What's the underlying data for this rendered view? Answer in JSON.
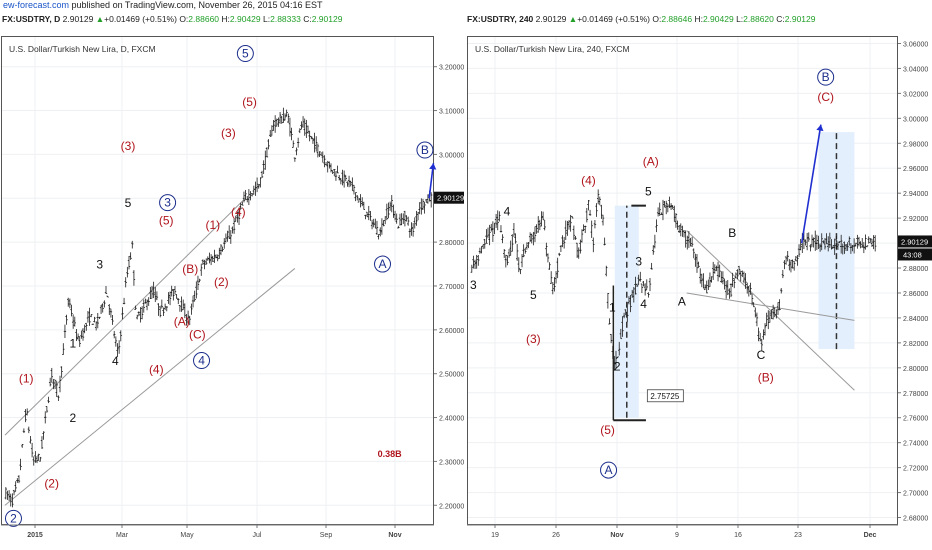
{
  "header": {
    "site": "ew-forecast.com",
    "published": " published on TradingView.com, November 26, 2015 04:16 EST"
  },
  "left_ohlc": {
    "symbol": "FX:USDTRY, D",
    "price": "2.90129",
    "change": "+0.01469 (+0.51%)",
    "o_label": "O:",
    "o": "2.88660",
    "h_label": "H:",
    "h": "2.90429",
    "l_label": "L:",
    "l": "2.88333",
    "c_label": "C:",
    "c": "2.90129"
  },
  "right_ohlc": {
    "symbol": "FX:USDTRY, 240",
    "price": "2.90129",
    "change": "+0.01469 (+0.51%)",
    "o_label": "O:",
    "o": "2.88646",
    "h_label": "H:",
    "h": "2.90429",
    "l_label": "L:",
    "l": "2.88620",
    "c_label": "C:",
    "c": "2.90129"
  },
  "colors": {
    "wave_red": "#b0141c",
    "wave_navy": "#1c2e8c",
    "wave_black": "#111111",
    "projection_fill": "#e3effc",
    "forecast_arrow": "#1f2fd0",
    "channel": "#9a9a9a"
  },
  "chart_data": [
    {
      "type": "candlestick",
      "title": "U.S. Dollar/Turkish New Lira, D, FXCM",
      "x_ticks": [
        "2015",
        "Mar",
        "May",
        "Jul",
        "Sep",
        "Nov"
      ],
      "y_ticks": [
        "2.20000",
        "2.30000",
        "2.40000",
        "2.50000",
        "2.60000",
        "2.70000",
        "2.80000",
        "2.90000",
        "3.00000",
        "3.10000",
        "3.20000"
      ],
      "ylim": [
        2.155,
        3.27
      ],
      "last_price": "2.90129",
      "path": [
        [
          0,
          2.23
        ],
        [
          0.05,
          2.21
        ],
        [
          0.1,
          2.26
        ],
        [
          0.15,
          2.42
        ],
        [
          0.2,
          2.3
        ],
        [
          0.25,
          2.31
        ],
        [
          0.33,
          2.5
        ],
        [
          0.38,
          2.45
        ],
        [
          0.45,
          2.67
        ],
        [
          0.52,
          2.57
        ],
        [
          0.6,
          2.63
        ],
        [
          0.65,
          2.61
        ],
        [
          0.72,
          2.69
        ],
        [
          0.8,
          2.54
        ],
        [
          0.86,
          2.72
        ],
        [
          0.9,
          2.79
        ],
        [
          0.93,
          2.62
        ],
        [
          1.05,
          2.69
        ],
        [
          1.1,
          2.64
        ],
        [
          1.2,
          2.69
        ],
        [
          1.3,
          2.62
        ],
        [
          1.4,
          2.75
        ],
        [
          1.5,
          2.77
        ],
        [
          1.6,
          2.82
        ],
        [
          1.7,
          2.9
        ],
        [
          1.8,
          2.93
        ],
        [
          1.9,
          3.07
        ],
        [
          2.0,
          3.09
        ],
        [
          2.05,
          3.0
        ],
        [
          2.1,
          3.07
        ],
        [
          2.3,
          2.97
        ],
        [
          2.45,
          2.93
        ],
        [
          2.55,
          2.87
        ],
        [
          2.65,
          2.82
        ],
        [
          2.73,
          2.89
        ],
        [
          2.78,
          2.84
        ],
        [
          2.83,
          2.86
        ],
        [
          2.88,
          2.82
        ],
        [
          2.93,
          2.88
        ],
        [
          3.0,
          2.9
        ]
      ],
      "x_range": [
        0,
        3.02
      ],
      "channels": [
        {
          "from": [
            0,
            2.36
          ],
          "to": [
            1.7,
            2.9
          ]
        },
        {
          "from": [
            0,
            2.2
          ],
          "to": [
            2.05,
            2.74
          ]
        }
      ],
      "annotation": {
        "text": "0.38B",
        "x": 2.72,
        "y": 2.31,
        "color": "wave_red"
      },
      "forecast": {
        "from": [
          3.0,
          2.9
        ],
        "to": [
          3.03,
          2.98
        ]
      },
      "labels": [
        {
          "text": "(1)",
          "x": 0.15,
          "y": 2.48,
          "color": "wave_red"
        },
        {
          "text": "(2)",
          "x": 0.33,
          "y": 2.24,
          "color": "wave_red"
        },
        {
          "text": "1",
          "x": 0.48,
          "y": 2.56,
          "color": "wave_black"
        },
        {
          "text": "2",
          "x": 0.48,
          "y": 2.39,
          "color": "wave_black"
        },
        {
          "text": "3",
          "x": 0.67,
          "y": 2.74,
          "color": "wave_black"
        },
        {
          "text": "4",
          "x": 0.78,
          "y": 2.52,
          "color": "wave_black"
        },
        {
          "text": "5",
          "x": 0.87,
          "y": 2.88,
          "color": "wave_black"
        },
        {
          "text": "(3)",
          "x": 0.87,
          "y": 3.01,
          "color": "wave_red"
        },
        {
          "text": "(4)",
          "x": 1.07,
          "y": 2.5,
          "color": "wave_red"
        },
        {
          "text": "(5)",
          "x": 1.14,
          "y": 2.84,
          "color": "wave_red"
        },
        {
          "text": "(A)",
          "x": 1.25,
          "y": 2.61,
          "color": "wave_red"
        },
        {
          "text": "(B)",
          "x": 1.31,
          "y": 2.73,
          "color": "wave_red"
        },
        {
          "text": "(C)",
          "x": 1.36,
          "y": 2.58,
          "color": "wave_red"
        },
        {
          "text": "(1)",
          "x": 1.47,
          "y": 2.83,
          "color": "wave_red"
        },
        {
          "text": "(2)",
          "x": 1.53,
          "y": 2.7,
          "color": "wave_red"
        },
        {
          "text": "(3)",
          "x": 1.58,
          "y": 3.04,
          "color": "wave_red"
        },
        {
          "text": "(4)",
          "x": 1.65,
          "y": 2.86,
          "color": "wave_red"
        },
        {
          "text": "(5)",
          "x": 1.73,
          "y": 3.11,
          "color": "wave_red"
        }
      ],
      "circles": [
        {
          "text": "2",
          "x": 0.06,
          "y": 2.17
        },
        {
          "text": "3",
          "x": 1.15,
          "y": 2.89
        },
        {
          "text": "4",
          "x": 1.39,
          "y": 2.53
        },
        {
          "text": "5",
          "x": 1.7,
          "y": 3.23
        },
        {
          "text": "A",
          "x": 2.67,
          "y": 2.75
        },
        {
          "text": "B",
          "x": 2.97,
          "y": 3.01
        }
      ]
    },
    {
      "type": "candlestick",
      "title": "U.S. Dollar/Turkish New Lira, 240, FXCM",
      "x_ticks": [
        "19",
        "26",
        "Nov",
        "9",
        "16",
        "23",
        "Dec"
      ],
      "y_ticks": [
        "2.68000",
        "2.70000",
        "2.72000",
        "2.74000",
        "2.76000",
        "2.78000",
        "2.80000",
        "2.82000",
        "2.84000",
        "2.86000",
        "2.88000",
        "2.90000",
        "2.92000",
        "2.94000",
        "2.96000",
        "2.98000",
        "3.00000",
        "3.02000",
        "3.04000",
        "3.06000"
      ],
      "ylim": [
        2.674,
        3.066
      ],
      "last_price": "2.90129",
      "countdown": "43:08",
      "projection_label": "2.75725",
      "path": [
        [
          0,
          2.88
        ],
        [
          0.3,
          2.9
        ],
        [
          0.6,
          2.92
        ],
        [
          0.75,
          2.88
        ],
        [
          0.9,
          2.91
        ],
        [
          1.0,
          2.88
        ],
        [
          1.2,
          2.9
        ],
        [
          1.5,
          2.92
        ],
        [
          1.7,
          2.86
        ],
        [
          1.9,
          2.9
        ],
        [
          2.1,
          2.92
        ],
        [
          2.25,
          2.89
        ],
        [
          2.45,
          2.93
        ],
        [
          2.55,
          2.9
        ],
        [
          2.65,
          2.94
        ],
        [
          2.75,
          2.92
        ],
        [
          2.9,
          2.83
        ],
        [
          3.0,
          2.8
        ],
        [
          3.2,
          2.84
        ],
        [
          3.5,
          2.87
        ],
        [
          3.7,
          2.86
        ],
        [
          3.9,
          2.92
        ],
        [
          4.05,
          2.93
        ],
        [
          4.2,
          2.93
        ],
        [
          4.35,
          2.91
        ],
        [
          4.6,
          2.9
        ],
        [
          4.9,
          2.86
        ],
        [
          5.1,
          2.88
        ],
        [
          5.4,
          2.86
        ],
        [
          5.6,
          2.88
        ],
        [
          5.85,
          2.86
        ],
        [
          6.05,
          2.82
        ],
        [
          6.2,
          2.84
        ],
        [
          6.45,
          2.85
        ],
        [
          6.55,
          2.89
        ],
        [
          6.75,
          2.88
        ],
        [
          6.9,
          2.9
        ]
      ],
      "x_range": [
        0,
        8.45
      ],
      "projections": [
        {
          "x0": 3.0,
          "x1": 3.5,
          "y0": 2.76,
          "y1": 2.93
        },
        {
          "x0": 7.25,
          "x1": 8.0,
          "y0": 2.815,
          "y1": 2.989
        }
      ],
      "bracket": {
        "x0": 2.97,
        "x1": 3.65,
        "y_top": 2.93,
        "y_bottom": 2.758
      },
      "channels": [
        {
          "from": [
            4.5,
            2.91
          ],
          "to": [
            8.0,
            2.782
          ]
        },
        {
          "from": [
            4.5,
            2.86
          ],
          "to": [
            8.0,
            2.838
          ]
        }
      ],
      "forecast": {
        "from": [
          6.9,
          2.9
        ],
        "to": [
          7.3,
          2.995
        ]
      },
      "labels": [
        {
          "text": "3",
          "x": 0.05,
          "y": 2.863,
          "color": "wave_black"
        },
        {
          "text": "4",
          "x": 0.75,
          "y": 2.922,
          "color": "wave_black"
        },
        {
          "text": "5",
          "x": 1.3,
          "y": 2.855,
          "color": "wave_black"
        },
        {
          "text": "(3)",
          "x": 1.3,
          "y": 2.82,
          "color": "wave_red"
        },
        {
          "text": "(4)",
          "x": 2.45,
          "y": 2.947,
          "color": "wave_red"
        },
        {
          "text": "(A)",
          "x": 3.75,
          "y": 2.962,
          "color": "wave_red"
        },
        {
          "text": "5",
          "x": 3.7,
          "y": 2.938,
          "color": "wave_black"
        },
        {
          "text": "1",
          "x": 2.95,
          "y": 2.845,
          "color": "wave_black"
        },
        {
          "text": "2",
          "x": 3.05,
          "y": 2.798,
          "color": "wave_black"
        },
        {
          "text": "3",
          "x": 3.5,
          "y": 2.882,
          "color": "wave_black"
        },
        {
          "text": "4",
          "x": 3.6,
          "y": 2.848,
          "color": "wave_black"
        },
        {
          "text": "(5)",
          "x": 2.85,
          "y": 2.747,
          "color": "wave_red"
        },
        {
          "text": "A",
          "x": 4.4,
          "y": 2.85,
          "color": "wave_black"
        },
        {
          "text": "B",
          "x": 5.45,
          "y": 2.905,
          "color": "wave_black"
        },
        {
          "text": "C",
          "x": 6.05,
          "y": 2.807,
          "color": "wave_black"
        },
        {
          "text": "(B)",
          "x": 6.15,
          "y": 2.789,
          "color": "wave_red"
        },
        {
          "text": "(C)",
          "x": 7.4,
          "y": 3.014,
          "color": "wave_red"
        }
      ],
      "circles": [
        {
          "text": "A",
          "x": 2.87,
          "y": 2.718
        },
        {
          "text": "B",
          "x": 7.4,
          "y": 3.033
        }
      ]
    }
  ]
}
